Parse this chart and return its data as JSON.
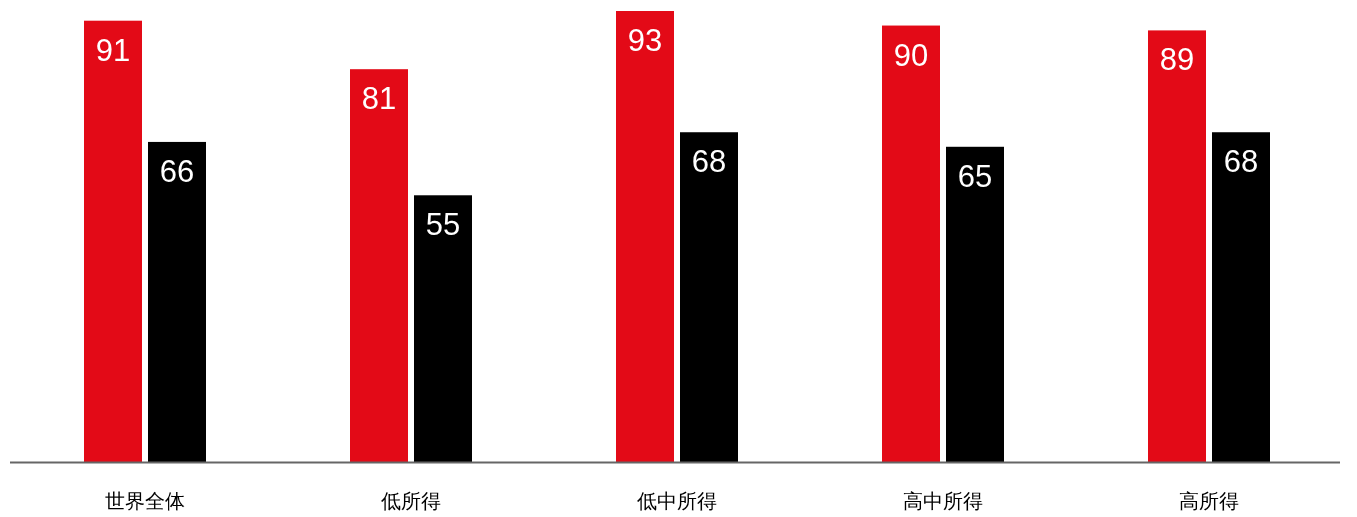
{
  "chart_data": {
    "type": "bar",
    "categories": [
      "世界全体",
      "低所得",
      "低中所得",
      "高中所得",
      "高所得"
    ],
    "series": [
      {
        "color": "#e30a17",
        "values": [
          91,
          81,
          93,
          90,
          89
        ]
      },
      {
        "color": "#000000",
        "values": [
          66,
          55,
          68,
          65,
          68
        ]
      }
    ],
    "data_labels": true
  }
}
